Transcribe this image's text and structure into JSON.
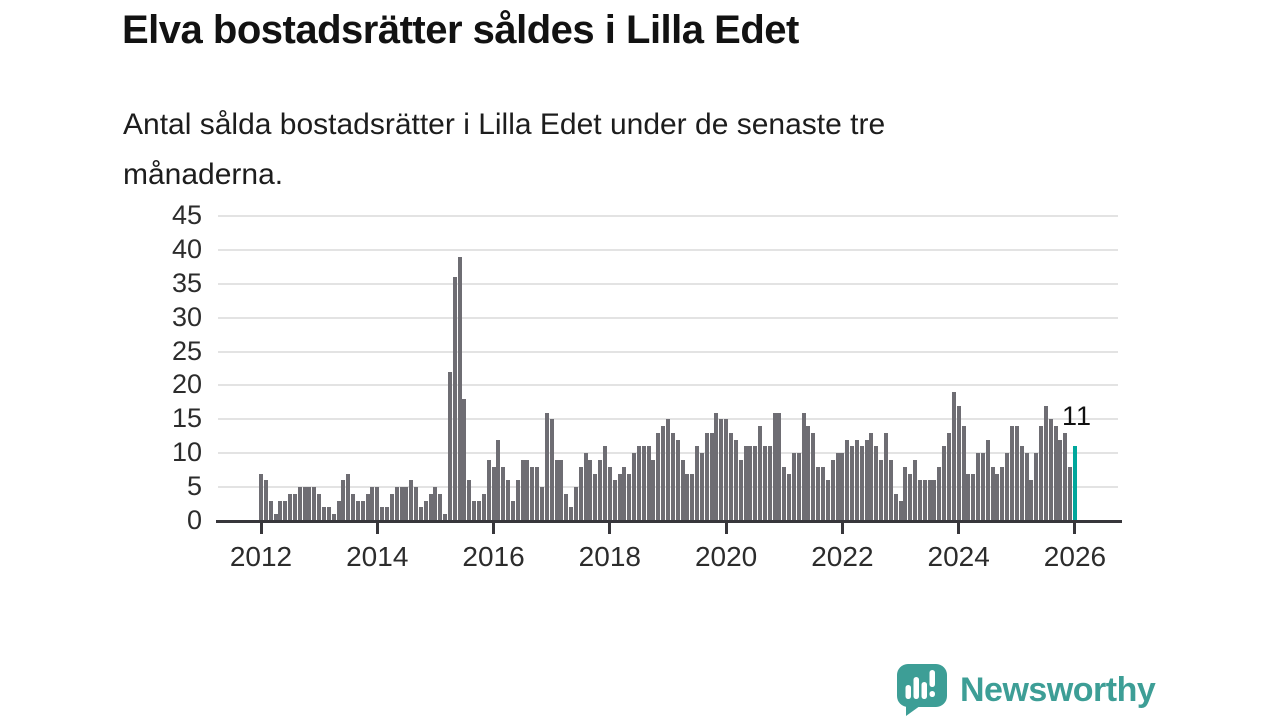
{
  "header": {
    "title": "Elva bostadsrätter såldes i Lilla Edet",
    "subtitle_line1": "Antal sålda bostadsrätter i Lilla Edet under de senaste tre",
    "subtitle_line2": "månaderna."
  },
  "chart_data": {
    "type": "bar",
    "title": "Elva bostadsrätter såldes i Lilla Edet",
    "x_start": "2012-01",
    "x_end": "2026-01",
    "x_unit": "month",
    "values": [
      7,
      6,
      3,
      1,
      3,
      3,
      4,
      4,
      5,
      5,
      5,
      5,
      4,
      2,
      2,
      1,
      3,
      6,
      7,
      4,
      3,
      3,
      4,
      5,
      5,
      2,
      2,
      4,
      5,
      5,
      5,
      6,
      5,
      2,
      3,
      4,
      5,
      4,
      1,
      22,
      36,
      39,
      18,
      6,
      3,
      3,
      4,
      9,
      8,
      12,
      8,
      6,
      3,
      6,
      9,
      9,
      8,
      8,
      5,
      16,
      15,
      9,
      9,
      4,
      2,
      5,
      8,
      10,
      9,
      7,
      9,
      11,
      8,
      6,
      7,
      8,
      7,
      10,
      11,
      11,
      11,
      9,
      13,
      14,
      15,
      13,
      12,
      9,
      7,
      7,
      11,
      10,
      13,
      13,
      16,
      15,
      15,
      13,
      12,
      9,
      11,
      11,
      11,
      14,
      11,
      11,
      16,
      16,
      8,
      7,
      10,
      10,
      16,
      14,
      13,
      8,
      8,
      6,
      9,
      10,
      10,
      12,
      11,
      12,
      11,
      12,
      13,
      11,
      9,
      13,
      9,
      4,
      3,
      8,
      7,
      9,
      6,
      6,
      6,
      6,
      8,
      11,
      13,
      19,
      17,
      14,
      7,
      7,
      10,
      10,
      12,
      8,
      7,
      8,
      10,
      14,
      14,
      11,
      10,
      6,
      10,
      14,
      17,
      15,
      14,
      12,
      13,
      8,
      11
    ],
    "highlight_last_bar": true,
    "highlight_value": 11,
    "annotation_label": "11",
    "ylim": [
      0,
      45
    ],
    "yticks": [
      0,
      5,
      10,
      15,
      20,
      25,
      30,
      35,
      40,
      45
    ],
    "xticks": [
      2012,
      2014,
      2016,
      2018,
      2020,
      2022,
      2024,
      2026
    ],
    "grid": true,
    "legend_position": "none",
    "bar_color": "#6e6d73",
    "highlight_color": "#00a79c",
    "gridline_color": "#e3e3e3",
    "axis_color": "#37363b"
  },
  "branding": {
    "logo_icon": "bar-chart-speech-bubble",
    "logo_text": "Newsworthy",
    "logo_color": "#3d9e96"
  }
}
